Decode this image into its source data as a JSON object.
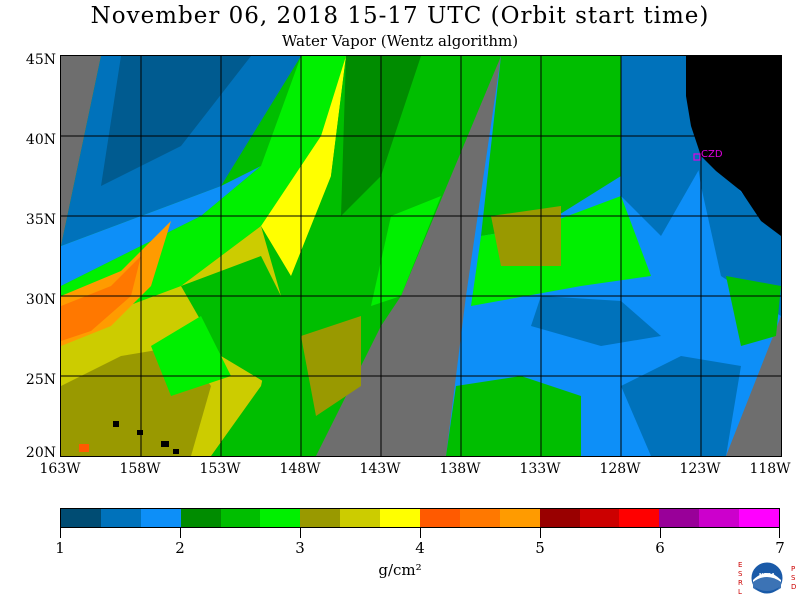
{
  "title": "November 06, 2018  15-17 UTC  (Orbit start time)",
  "subtitle": "Water Vapor (Wentz algorithm)",
  "lat_labels": [
    "45N",
    "40N",
    "35N",
    "30N",
    "25N",
    "20N"
  ],
  "lon_labels": [
    "163W",
    "158W",
    "153W",
    "148W",
    "143W",
    "138W",
    "133W",
    "128W",
    "123W",
    "118W"
  ],
  "map": {
    "extent": {
      "lon_min": -163,
      "lon_max": -118,
      "lat_min": 20,
      "lat_max": 45
    },
    "station_label": "CZD",
    "colors": {
      "no_data": "#6e6e6e",
      "land": "#000000",
      "grid": "#000000",
      "station": "#e000e0"
    }
  },
  "colorbar": {
    "colors": [
      "#004c73",
      "#0072bb",
      "#0d8ff8",
      "#008c00",
      "#00be00",
      "#00f000",
      "#999900",
      "#cccc00",
      "#ffff00",
      "#ff5a00",
      "#ff7800",
      "#ff9b00",
      "#990000",
      "#cc0000",
      "#ff0000",
      "#990099",
      "#cc00cc",
      "#ff00ff"
    ],
    "tick_labels": [
      "1",
      "2",
      "3",
      "4",
      "5",
      "6",
      "7"
    ],
    "units": "g/cm²"
  },
  "logo": {
    "left_text": "ESRL",
    "right_text": "PSD",
    "center_text": "NOAA"
  }
}
